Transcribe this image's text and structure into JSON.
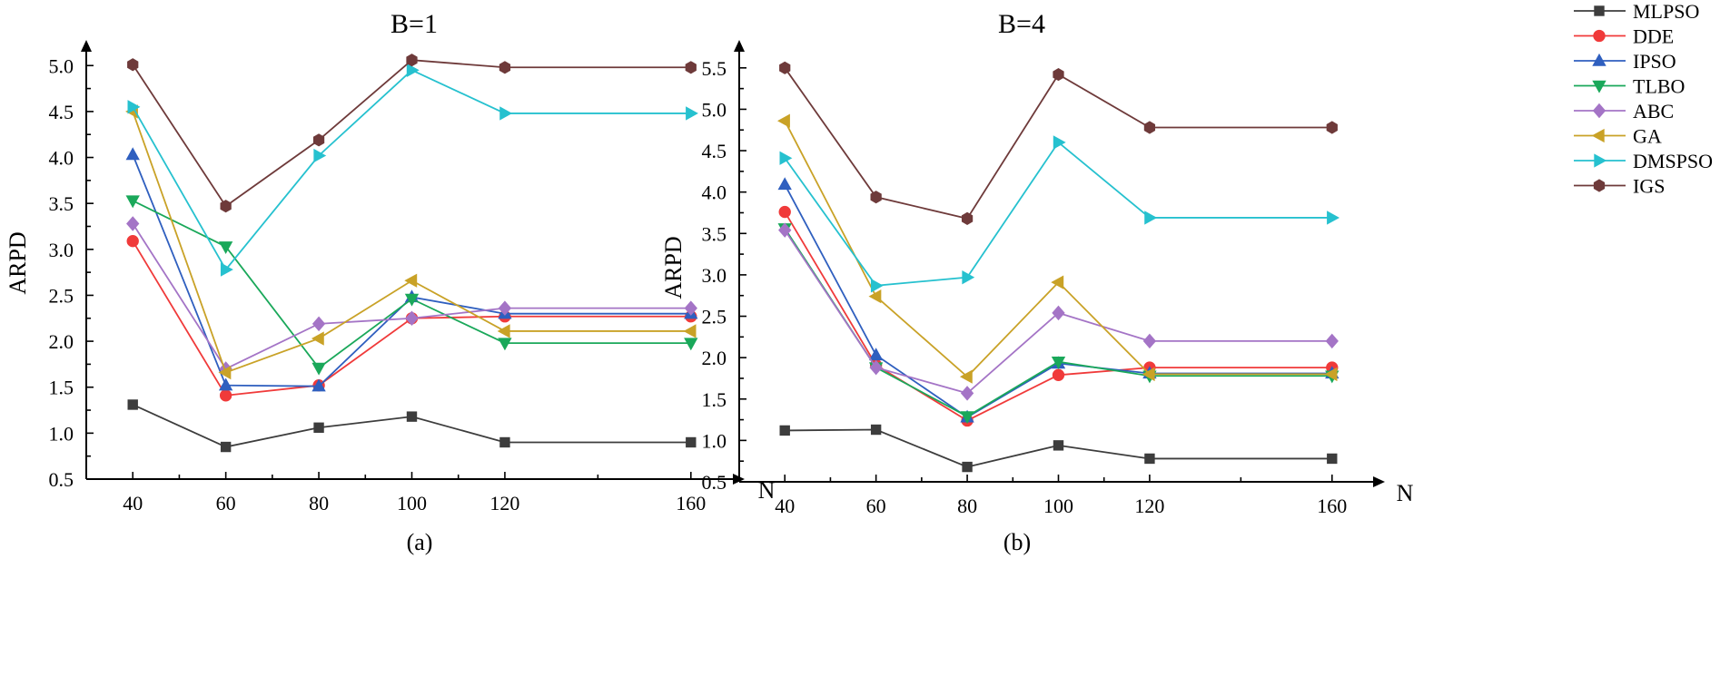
{
  "chart_data": [
    {
      "type": "line",
      "title": "B=1",
      "panel_label": "(a)",
      "xlabel": "N",
      "ylabel": "ARPD",
      "categories": [
        "40",
        "60",
        "80",
        "100",
        "120",
        "160"
      ],
      "x": [
        40,
        60,
        80,
        100,
        120,
        160
      ],
      "xlim": [
        30,
        170
      ],
      "ylim": [
        0.5,
        5.2
      ],
      "yticks": [
        "0.5",
        "1.0",
        "1.5",
        "2.0",
        "2.5",
        "3.0",
        "3.5",
        "4.0",
        "4.5",
        "5.0"
      ],
      "series": [
        {
          "name": "MLPSO",
          "values": [
            1.31,
            0.85,
            1.06,
            1.18,
            0.9,
            0.9
          ]
        },
        {
          "name": "DDE",
          "values": [
            3.09,
            1.41,
            1.52,
            2.25,
            2.27,
            2.27
          ]
        },
        {
          "name": "IPSO",
          "values": [
            4.03,
            1.52,
            1.51,
            2.48,
            2.3,
            2.3
          ]
        },
        {
          "name": "TLBO",
          "values": [
            3.53,
            3.03,
            1.71,
            2.46,
            1.98,
            1.98
          ]
        },
        {
          "name": "ABC",
          "values": [
            3.28,
            1.7,
            2.19,
            2.25,
            2.36,
            2.36
          ]
        },
        {
          "name": "GA",
          "values": [
            4.5,
            1.66,
            2.03,
            2.66,
            2.11,
            2.11
          ]
        },
        {
          "name": "DMSPSO",
          "values": [
            4.55,
            2.78,
            4.02,
            4.95,
            4.48,
            4.48
          ]
        },
        {
          "name": "IGS",
          "values": [
            5.01,
            3.47,
            4.19,
            5.06,
            4.98,
            4.98
          ]
        }
      ]
    },
    {
      "type": "line",
      "title": "B=4",
      "panel_label": "(b)",
      "xlabel": "N",
      "ylabel": "ARPD",
      "categories": [
        "40",
        "60",
        "80",
        "100",
        "120",
        "160"
      ],
      "x": [
        40,
        60,
        80,
        100,
        120,
        160
      ],
      "xlim": [
        30,
        170
      ],
      "ylim": [
        0.5,
        5.75
      ],
      "yticks": [
        "0.5",
        "1.0",
        "1.5",
        "2.0",
        "2.5",
        "3.0",
        "3.5",
        "4.0",
        "4.5",
        "5.0",
        "5.5"
      ],
      "series": [
        {
          "name": "MLPSO",
          "values": [
            1.12,
            1.13,
            0.68,
            0.94,
            0.78,
            0.78
          ]
        },
        {
          "name": "DDE",
          "values": [
            3.76,
            1.91,
            1.24,
            1.79,
            1.88,
            1.88
          ]
        },
        {
          "name": "IPSO",
          "values": [
            4.09,
            2.03,
            1.28,
            1.93,
            1.81,
            1.81
          ]
        },
        {
          "name": "TLBO",
          "values": [
            3.56,
            1.88,
            1.29,
            1.95,
            1.78,
            1.78
          ]
        },
        {
          "name": "ABC",
          "values": [
            3.54,
            1.88,
            1.57,
            2.54,
            2.2,
            2.2
          ]
        },
        {
          "name": "GA",
          "values": [
            4.86,
            2.74,
            1.77,
            2.91,
            1.8,
            1.8
          ]
        },
        {
          "name": "DMSPSO",
          "values": [
            4.41,
            2.87,
            2.97,
            4.6,
            3.69,
            3.69
          ]
        },
        {
          "name": "IGS",
          "values": [
            5.5,
            3.94,
            3.68,
            5.42,
            4.78,
            4.78
          ]
        }
      ]
    }
  ],
  "legend": {
    "position": "top-right",
    "items": [
      {
        "name": "MLPSO",
        "color": "#3d3d3d",
        "marker": "square"
      },
      {
        "name": "DDE",
        "color": "#f03a3a",
        "marker": "circle"
      },
      {
        "name": "IPSO",
        "color": "#2f5fbf",
        "marker": "triangle-up"
      },
      {
        "name": "TLBO",
        "color": "#1aa85a",
        "marker": "triangle-down"
      },
      {
        "name": "ABC",
        "color": "#a474c6",
        "marker": "diamond"
      },
      {
        "name": "GA",
        "color": "#c9a227",
        "marker": "triangle-left"
      },
      {
        "name": "DMSPSO",
        "color": "#26c1cf",
        "marker": "triangle-right"
      },
      {
        "name": "IGS",
        "color": "#6e3a3a",
        "marker": "hexagon"
      }
    ]
  }
}
